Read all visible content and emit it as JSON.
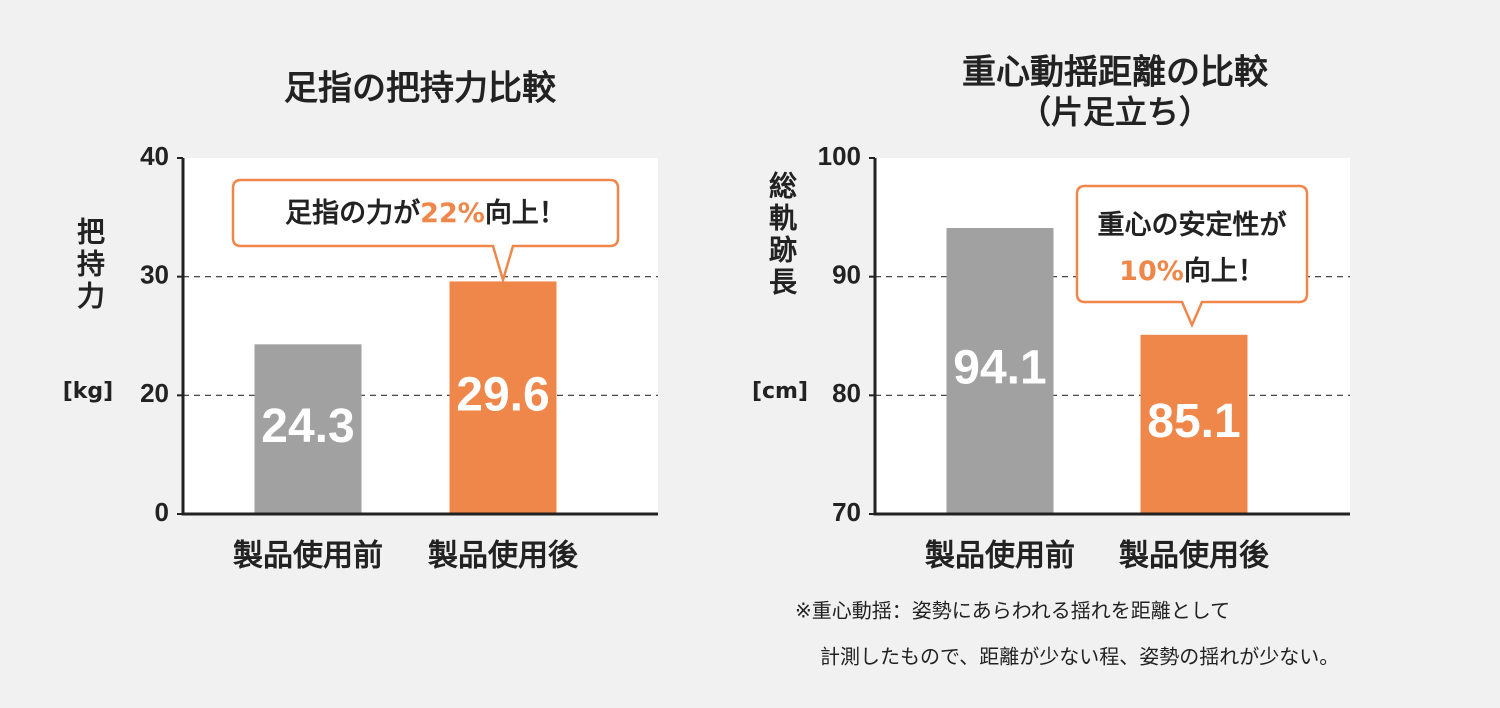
{
  "chart_data": [
    {
      "type": "bar",
      "title": "足指の把持力比較",
      "ylabel": "把持力",
      "yunit": "[kg]",
      "categories": [
        "製品使用前",
        "製品使用後"
      ],
      "values": [
        24.3,
        29.6
      ],
      "colors": [
        "#a0a1a0",
        "#f0874a"
      ],
      "ylim": [
        0,
        40
      ],
      "yticks": [
        0,
        20,
        30,
        40
      ],
      "grid": true,
      "annotation": [
        [
          {
            "text": "足指の力が"
          },
          {
            "text": "22%",
            "color": "#f0874a"
          },
          {
            "text": "向上！"
          }
        ]
      ]
    },
    {
      "type": "bar",
      "title": "重心動揺距離の比較",
      "subtitle": "（片足立ち）",
      "ylabel": "総軌跡長",
      "yunit": "[cm]",
      "categories": [
        "製品使用前",
        "製品使用後"
      ],
      "values": [
        94.1,
        85.1
      ],
      "colors": [
        "#a0a1a0",
        "#f0874a"
      ],
      "ylim": [
        70,
        100
      ],
      "yticks": [
        70,
        80,
        90,
        100
      ],
      "grid": true,
      "annotation": [
        [
          {
            "text": "重心の安定性が"
          }
        ],
        [
          {
            "text": "10%",
            "color": "#f0874a"
          },
          {
            "text": "向上！"
          }
        ]
      ]
    }
  ],
  "footnote": [
    "※重心動揺：姿勢にあらわれる揺れを距離として",
    "計測したもので、距離が少ない程、姿勢の揺れが少ない。"
  ]
}
